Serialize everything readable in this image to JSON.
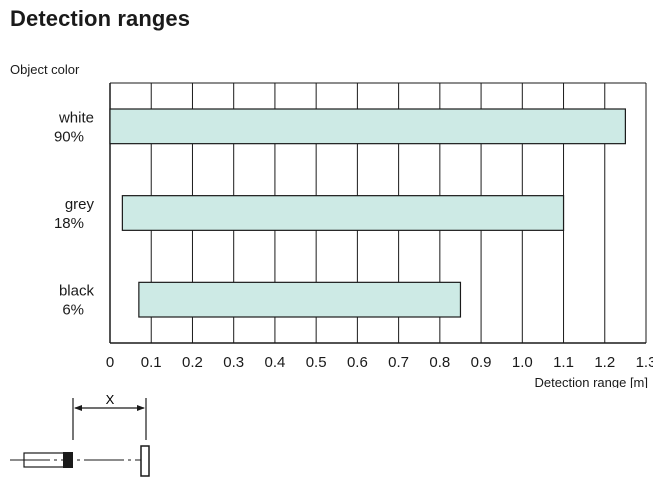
{
  "page": {
    "title": "Detection ranges"
  },
  "chart_data": {
    "type": "bar",
    "orientation": "horizontal",
    "title": "Detection ranges",
    "ylabel": "Object color",
    "xlabel": "Detection range [m]",
    "categories": [
      {
        "label_line1": "white",
        "label_line2": "90%"
      },
      {
        "label_line1": "grey",
        "label_line2": "18%"
      },
      {
        "label_line1": "black",
        "label_line2": "6%"
      }
    ],
    "ranges": [
      {
        "start": 0.0,
        "end": 1.25
      },
      {
        "start": 0.03,
        "end": 1.1
      },
      {
        "start": 0.07,
        "end": 0.85
      }
    ],
    "xlim": [
      0,
      1.3
    ],
    "xticks": [
      "0",
      "0.1",
      "0.2",
      "0.3",
      "0.4",
      "0.5",
      "0.6",
      "0.7",
      "0.8",
      "0.9",
      "1.0",
      "1.1",
      "1.2",
      "1.3"
    ],
    "grid": true,
    "bar_color": "#cdeae5",
    "bar_stroke": "#1a1a1a"
  },
  "diagram": {
    "distance_label": "X"
  }
}
